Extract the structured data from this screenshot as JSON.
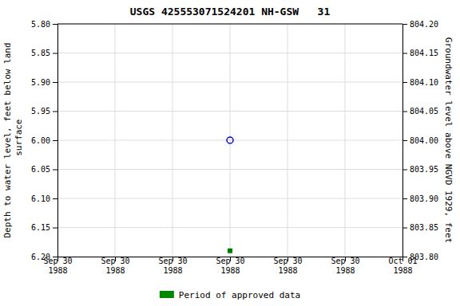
{
  "chart_data": {
    "type": "scatter",
    "title": "USGS 425553071524201 NH-GSW   31",
    "y_label": "Depth to water level, feet below land\n surface",
    "y2_label": "Groundwater level above NGVD 1929, feet",
    "categories": [
      "Sep 30\n1988",
      "Sep 30\n1988",
      "Sep 30\n1988",
      "Sep 30\n1988",
      "Sep 30\n1988",
      "Sep 30\n1988",
      "Oct 01\n1988"
    ],
    "series": [
      {
        "name": "Period of approved data",
        "type": "area",
        "color": "#008800",
        "values": [
          null,
          null,
          null,
          null,
          null,
          null,
          null
        ]
      },
      {
        "type": "scatter",
        "marker": "open-circle",
        "color": "blue",
        "values": [
          null,
          null,
          null,
          6.0,
          null,
          null,
          null
        ]
      },
      {
        "type": "scatter",
        "marker": "square",
        "color": "green",
        "values": [
          null,
          null,
          null,
          6.19,
          null,
          null,
          null
        ]
      }
    ],
    "ylim": [
      6.2,
      5.8
    ],
    "yticks": [
      {
        "value": 5.8,
        "label": "5.80"
      },
      {
        "value": 5.85,
        "label": "5.85"
      },
      {
        "value": 5.9,
        "label": "5.90"
      },
      {
        "value": 5.95,
        "label": "5.95"
      },
      {
        "value": 6.0,
        "label": "6.00"
      },
      {
        "value": 6.05,
        "label": "6.05"
      },
      {
        "value": 6.1,
        "label": "6.10"
      },
      {
        "value": 6.15,
        "label": "6.15"
      },
      {
        "value": 6.2,
        "label": "6.20"
      }
    ],
    "y2lim": [
      803.8,
      804.2
    ],
    "y2ticks": [
      {
        "value": 804.2,
        "label": "804.20"
      },
      {
        "value": 804.15,
        "label": "804.15"
      },
      {
        "value": 804.1,
        "label": "804.10"
      },
      {
        "value": 804.05,
        "label": "804.05"
      },
      {
        "value": 804.0,
        "label": "804.00"
      },
      {
        "value": 803.95,
        "label": "803.95"
      },
      {
        "value": 803.9,
        "label": "803.90"
      },
      {
        "value": 803.85,
        "label": "803.85"
      },
      {
        "value": 803.8,
        "label": "803.80"
      }
    ],
    "grid": true,
    "legend": "bottom"
  }
}
